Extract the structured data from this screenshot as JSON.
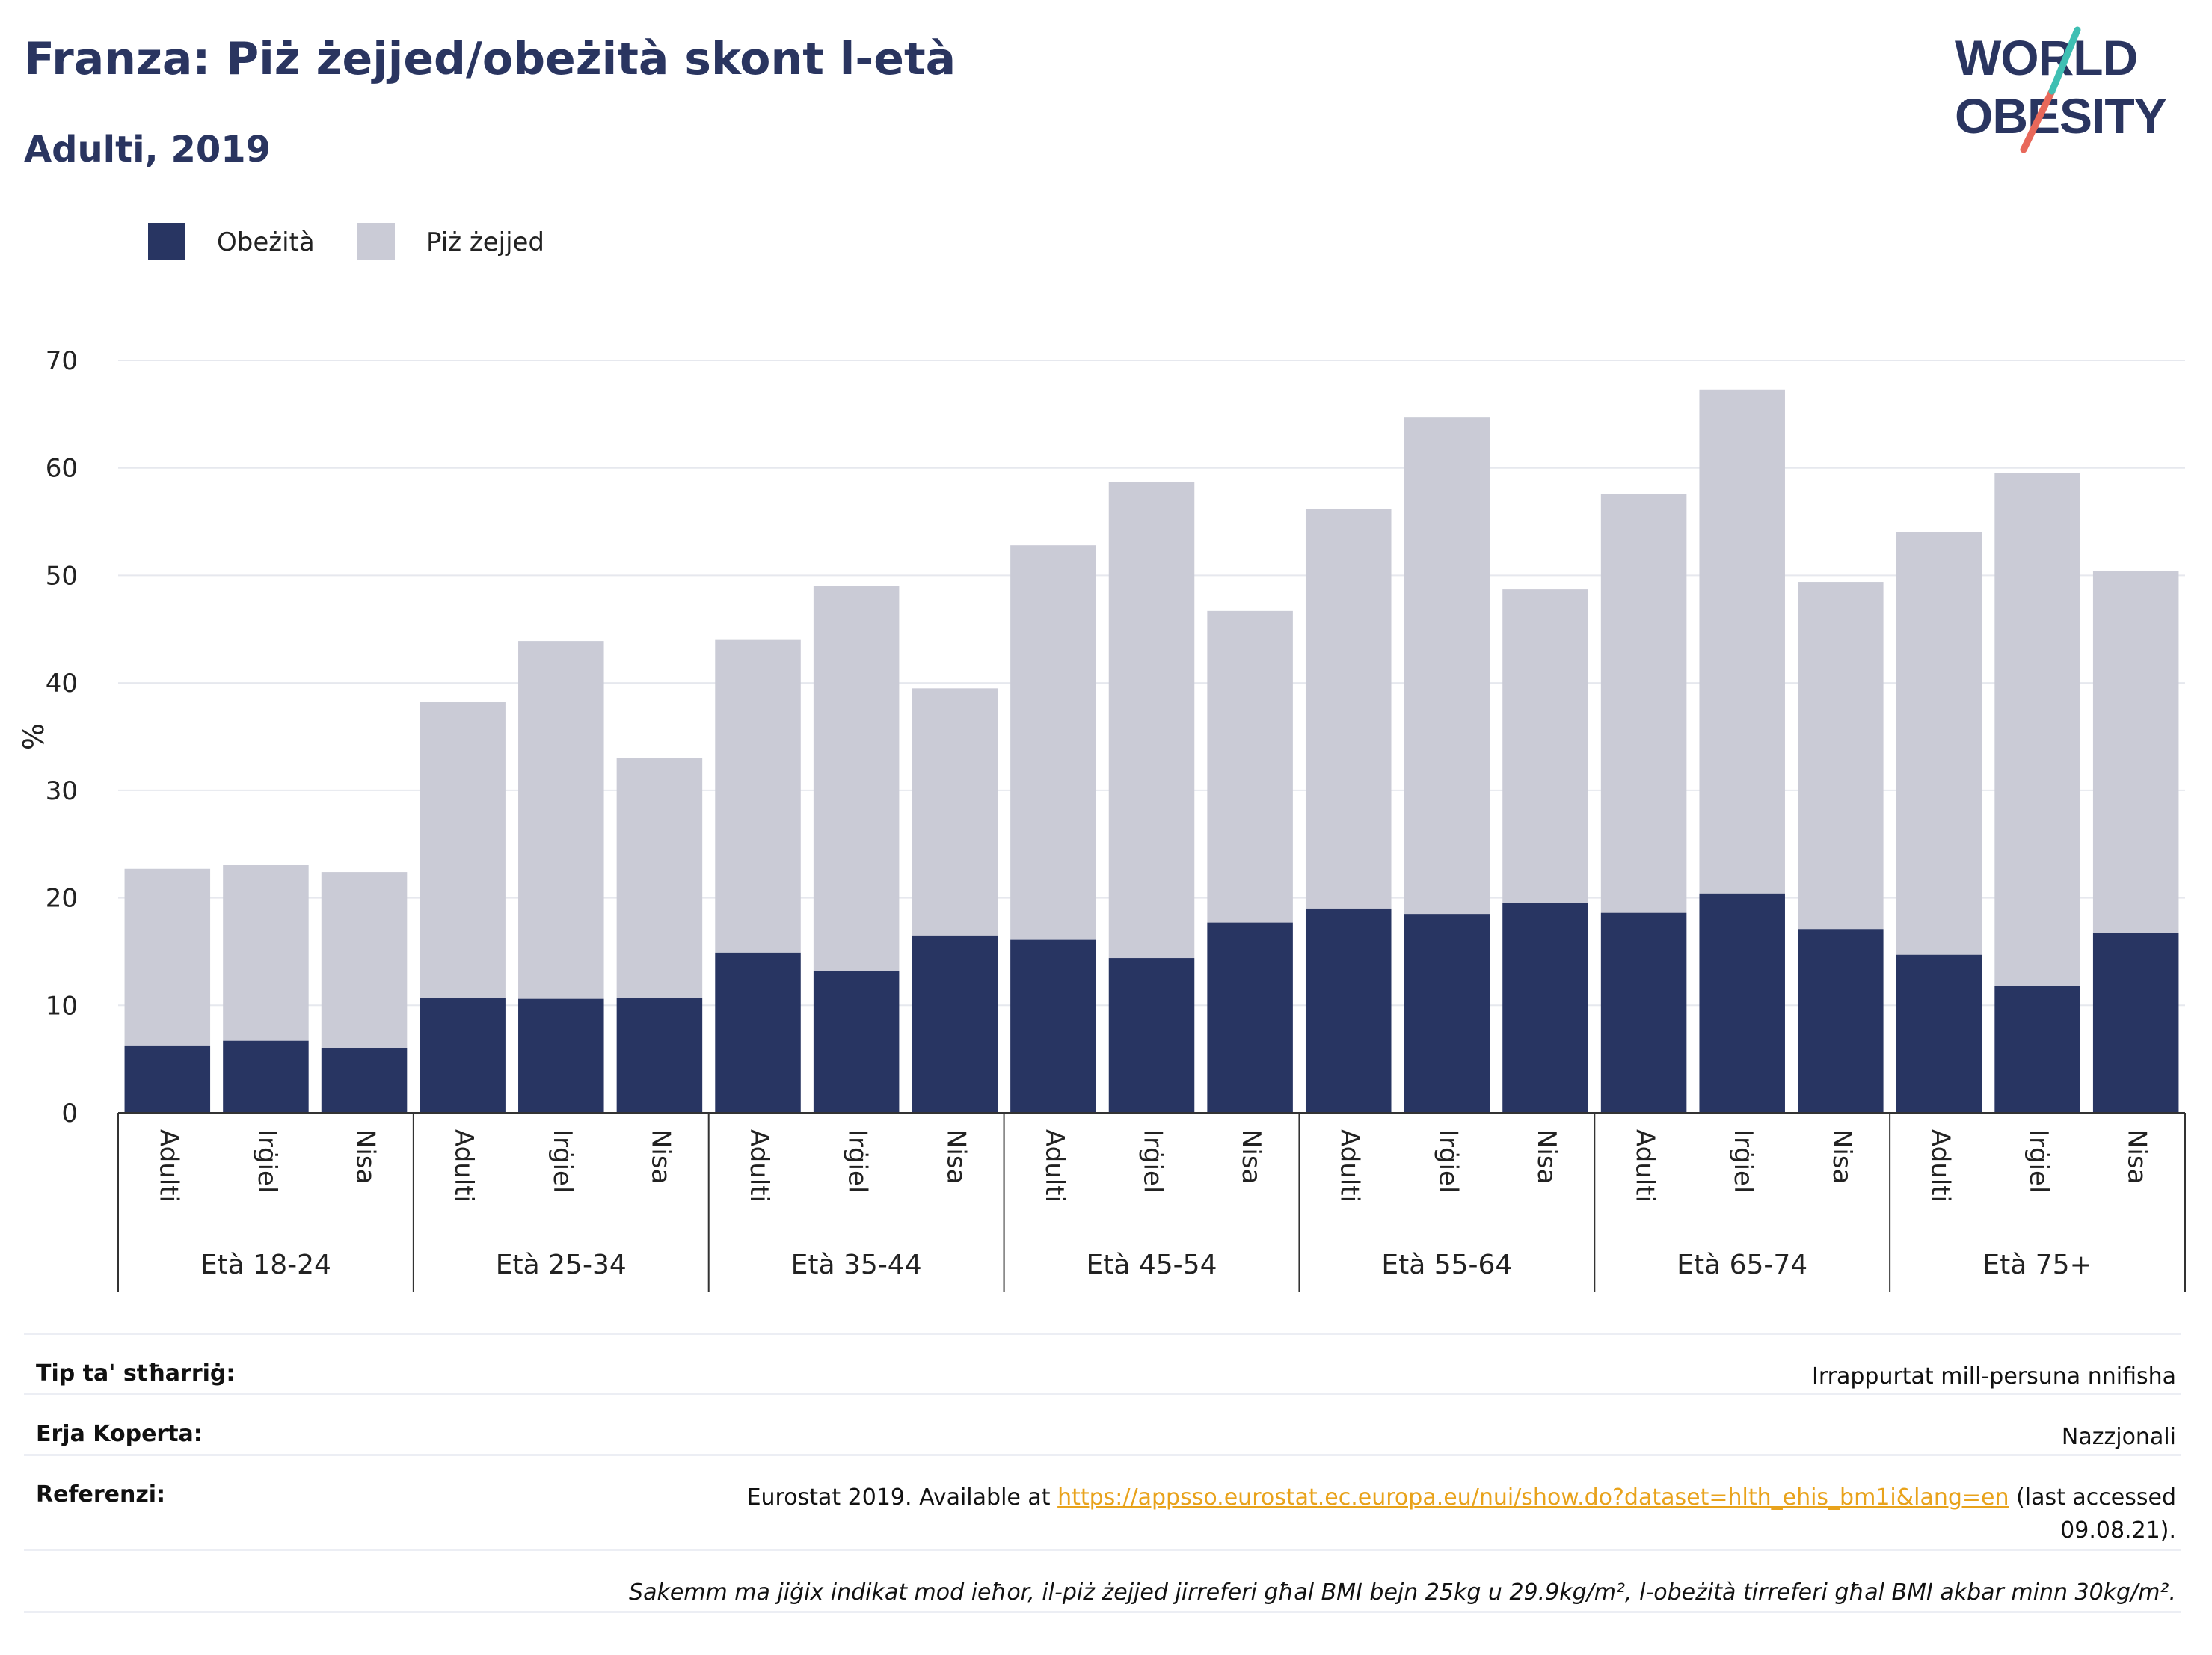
{
  "title": "Franza: Piż żejjed/obeżità skont l-età",
  "subtitle": "Adulti, 2019",
  "logo": {
    "line1": "WORLD",
    "line2": "OBESITY"
  },
  "colors": {
    "obesity": "#283562",
    "overweight": "#cacbd6",
    "text_dark": "#2a3560",
    "link": "#e8a21b"
  },
  "chart_data": {
    "type": "bar",
    "stacked": true,
    "ylabel": "%",
    "ylim": [
      0,
      70
    ],
    "yticks": [
      0,
      10,
      20,
      30,
      40,
      50,
      60,
      70
    ],
    "grid": true,
    "legend_position": "top-left",
    "series": [
      {
        "name": "Obeżità",
        "color": "#283562"
      },
      {
        "name": "Piż żejjed",
        "color": "#cacbd6"
      }
    ],
    "groups": [
      {
        "label": "Età 18-24",
        "bars": [
          {
            "label": "Adulti",
            "obesity": 6.2,
            "total": 22.7
          },
          {
            "label": "Irġiel",
            "obesity": 6.7,
            "total": 23.1
          },
          {
            "label": "Nisa",
            "obesity": 6.0,
            "total": 22.4
          }
        ]
      },
      {
        "label": "Età 25-34",
        "bars": [
          {
            "label": "Adulti",
            "obesity": 10.7,
            "total": 38.2
          },
          {
            "label": "Irġiel",
            "obesity": 10.6,
            "total": 43.9
          },
          {
            "label": "Nisa",
            "obesity": 10.7,
            "total": 33.0
          }
        ]
      },
      {
        "label": "Età 35-44",
        "bars": [
          {
            "label": "Adulti",
            "obesity": 14.9,
            "total": 44.0
          },
          {
            "label": "Irġiel",
            "obesity": 13.2,
            "total": 49.0
          },
          {
            "label": "Nisa",
            "obesity": 16.5,
            "total": 39.5
          }
        ]
      },
      {
        "label": "Età 45-54",
        "bars": [
          {
            "label": "Adulti",
            "obesity": 16.1,
            "total": 52.8
          },
          {
            "label": "Irġiel",
            "obesity": 14.4,
            "total": 58.7
          },
          {
            "label": "Nisa",
            "obesity": 17.7,
            "total": 46.7
          }
        ]
      },
      {
        "label": "Età 55-64",
        "bars": [
          {
            "label": "Adulti",
            "obesity": 19.0,
            "total": 56.2
          },
          {
            "label": "Irġiel",
            "obesity": 18.5,
            "total": 64.7
          },
          {
            "label": "Nisa",
            "obesity": 19.5,
            "total": 48.7
          }
        ]
      },
      {
        "label": "Età 65-74",
        "bars": [
          {
            "label": "Adulti",
            "obesity": 18.6,
            "total": 57.6
          },
          {
            "label": "Irġiel",
            "obesity": 20.4,
            "total": 67.3
          },
          {
            "label": "Nisa",
            "obesity": 17.1,
            "total": 49.4
          }
        ]
      },
      {
        "label": "Età 75+",
        "bars": [
          {
            "label": "Adulti",
            "obesity": 14.7,
            "total": 54.0
          },
          {
            "label": "Irġiel",
            "obesity": 11.8,
            "total": 59.5
          },
          {
            "label": "Nisa",
            "obesity": 16.7,
            "total": 50.4
          }
        ]
      }
    ]
  },
  "footer": {
    "survey_type_label": "Tip ta' stħarriġ:",
    "survey_type_value": "Irrappurtat mill-persuna nnifisha",
    "area_label": "Erja Koperta:",
    "area_value": "Nazzjonali",
    "refs_label": "Referenzi:",
    "refs_prefix": "Eurostat 2019. Available at ",
    "refs_link": "https://appsso.eurostat.ec.europa.eu/nui/show.do?dataset=hlth_ehis_bm1i&lang=en",
    "refs_suffix": " (last accessed",
    "refs_date": "09.08.21).",
    "note": "Sakemm ma jiġix indikat mod ieħor, il-piż żejjed jirreferi għal BMI bejn 25kg u 29.9kg/m², l-obeżità tirreferi għal BMI akbar minn 30kg/m²."
  }
}
